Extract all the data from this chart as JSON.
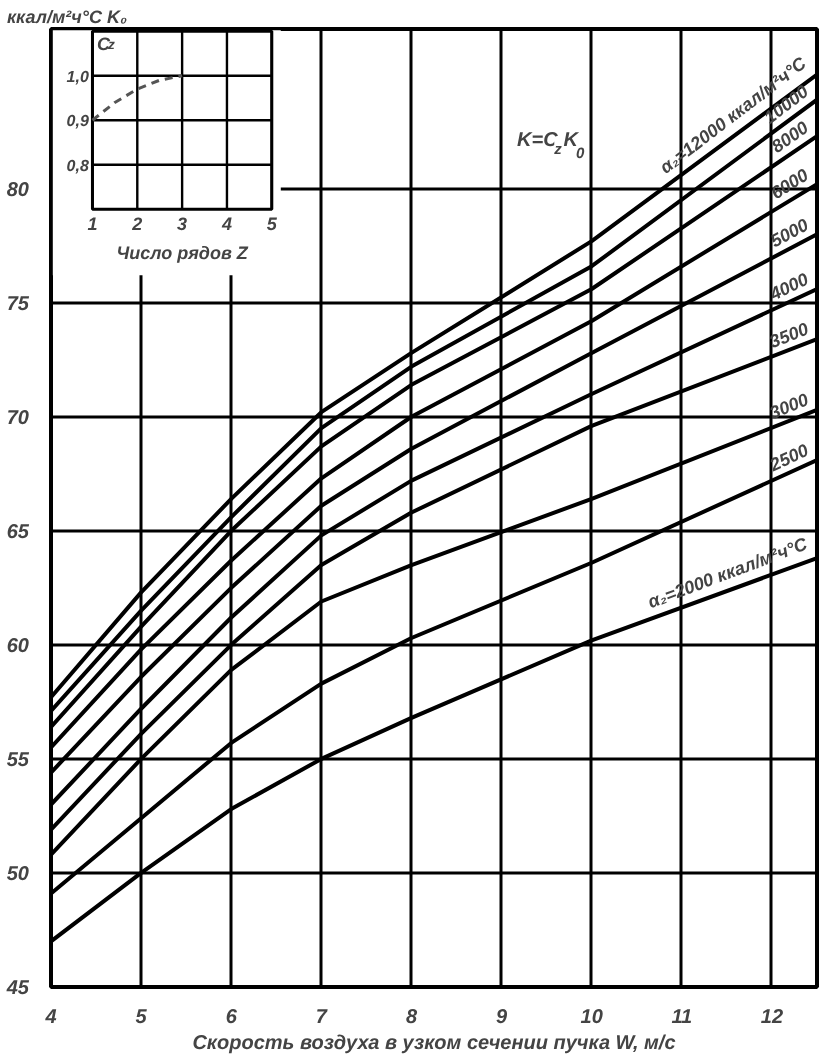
{
  "chart_data": [
    {
      "type": "line",
      "xlabel": "Скорость воздуха в узком сечении пучка W, м/с",
      "ylabel": "ккал/м²ч°С  K₀",
      "annotations": [
        "K=C$_{z}$K$_{0}$"
      ],
      "x": [
        4,
        5,
        6,
        7,
        8,
        10,
        12.5
      ],
      "xlim": [
        4,
        12.5
      ],
      "xticks": [
        4,
        5,
        6,
        7,
        8,
        9,
        10,
        11,
        12
      ],
      "ylim": [
        45,
        87
      ],
      "yticks": [
        45,
        50,
        55,
        60,
        65,
        70,
        75,
        80
      ],
      "grid": true,
      "series": [
        {
          "name": "α₂=12000 ккал/м²ч°С",
          "color": "#000000",
          "values": [
            57.7,
            62.3,
            66.4,
            70.2,
            72.8,
            77.7,
            85.0
          ]
        },
        {
          "name": "10000",
          "color": "#000000",
          "values": [
            57.1,
            61.5,
            65.6,
            69.5,
            72.2,
            76.6,
            83.9
          ]
        },
        {
          "name": "8000",
          "color": "#000000",
          "values": [
            56.4,
            60.8,
            65.0,
            68.7,
            71.4,
            75.6,
            82.3
          ]
        },
        {
          "name": "6000",
          "color": "#000000",
          "values": [
            55.5,
            59.8,
            63.7,
            67.3,
            70.0,
            74.2,
            80.2
          ]
        },
        {
          "name": "5000",
          "color": "#000000",
          "values": [
            54.4,
            58.6,
            62.5,
            66.1,
            68.6,
            72.8,
            78.0
          ]
        },
        {
          "name": "4000",
          "color": "#000000",
          "values": [
            53.0,
            57.2,
            61.2,
            64.8,
            67.2,
            71.0,
            75.6
          ]
        },
        {
          "name": "3500",
          "color": "#000000",
          "values": [
            51.9,
            56.1,
            60.0,
            63.5,
            65.8,
            69.6,
            73.4
          ]
        },
        {
          "name": "3000",
          "color": "#000000",
          "values": [
            50.8,
            55.0,
            58.9,
            61.9,
            63.5,
            66.4,
            70.3
          ]
        },
        {
          "name": "2500",
          "color": "#000000",
          "values": [
            49.1,
            52.4,
            55.7,
            58.3,
            60.3,
            63.6,
            68.1
          ]
        },
        {
          "name": "α₂=2000 ккал/м²ч°С",
          "color": "#000000",
          "values": [
            47.0,
            50.0,
            52.8,
            55.0,
            56.8,
            60.2,
            63.8
          ]
        }
      ]
    },
    {
      "type": "line",
      "xlabel": "Число рядов Z",
      "ylabel": "C$_{z}$",
      "x": [
        1,
        1.5,
        2,
        2.5,
        3
      ],
      "xlim": [
        1,
        5
      ],
      "xticks": [
        1,
        2,
        3,
        4,
        5
      ],
      "ylim": [
        0.7,
        1.1
      ],
      "yticks": [
        {
          "value": 0.8,
          "label": "0,8"
        },
        {
          "value": 0.9,
          "label": "0,9"
        },
        {
          "value": 1.0,
          "label": "1,0"
        }
      ],
      "grid": true,
      "line_style": "dashed",
      "series": [
        {
          "color": "#555555",
          "values": [
            0.9,
            0.94,
            0.97,
            0.99,
            1.0
          ]
        }
      ]
    }
  ]
}
